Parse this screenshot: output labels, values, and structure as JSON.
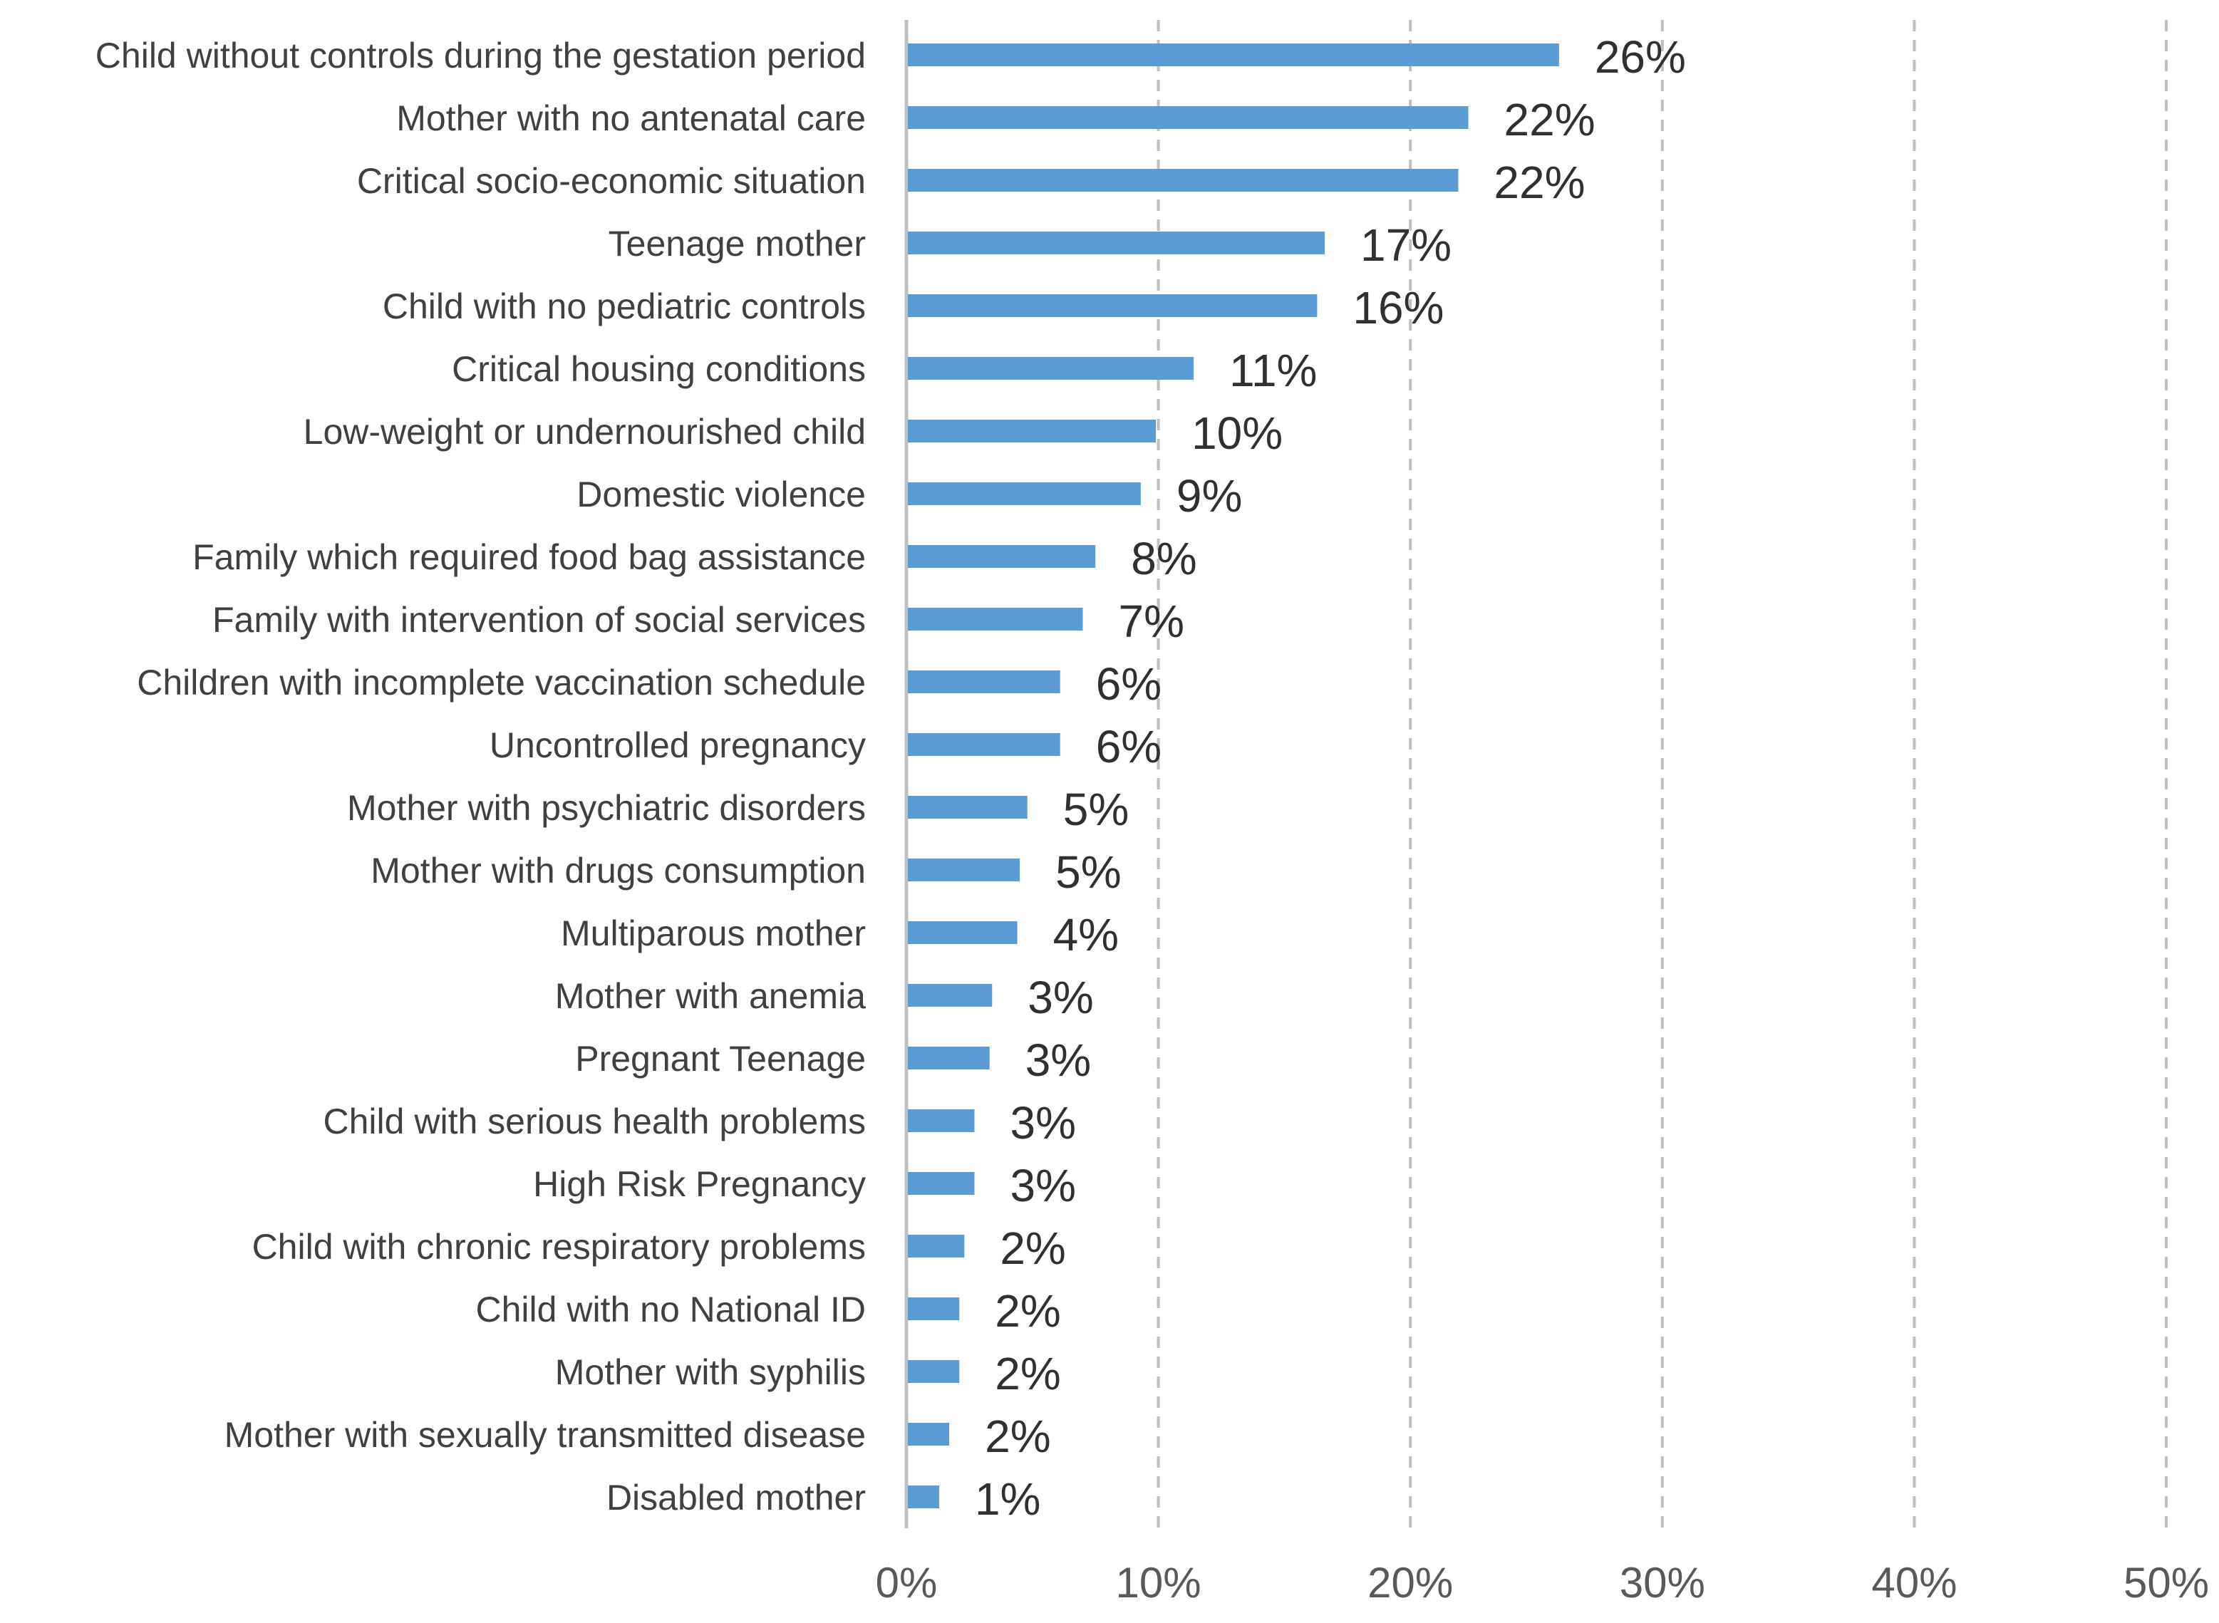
{
  "colors": {
    "bar": "#5b9bd5",
    "grid": "#bfbfbf",
    "axis": "#bfbfbf",
    "category_text": "#404040",
    "value_text": "#303030",
    "tick_text": "#595959"
  },
  "chart_data": {
    "type": "bar",
    "orientation": "horizontal",
    "title": "",
    "xlabel": "",
    "ylabel": "",
    "xlim": [
      0,
      50
    ],
    "ticks": [
      0,
      10,
      20,
      30,
      40,
      50
    ],
    "tick_labels": [
      "0%",
      "10%",
      "20%",
      "30%",
      "40%",
      "50%"
    ],
    "grid": "vertical dashed",
    "categories": [
      "Child without controls during the gestation period",
      "Mother with no antenatal care",
      "Critical socio-economic situation",
      "Teenage mother",
      "Child with no pediatric controls",
      "Critical housing conditions",
      "Low-weight or undernourished child",
      "Domestic violence",
      "Family which required food bag assistance",
      "Family with intervention of social services",
      "Children with incomplete vaccination schedule",
      "Uncontrolled pregnancy",
      "Mother with psychiatric disorders",
      "Mother with drugs consumption",
      "Multiparous mother",
      "Mother with anemia",
      "Pregnant Teenage",
      "Child with serious health problems",
      "High Risk Pregnancy",
      "Child with chronic respiratory problems",
      "Child with no National ID",
      "Mother with syphilis",
      "Mother with sexually transmitted disease",
      "Disabled mother"
    ],
    "values": [
      25.9,
      22.3,
      21.9,
      16.6,
      16.3,
      11.4,
      9.9,
      9.3,
      7.5,
      7.0,
      6.1,
      6.1,
      4.8,
      4.5,
      4.4,
      3.4,
      3.3,
      2.7,
      2.7,
      2.3,
      2.1,
      2.1,
      1.7,
      1.3
    ],
    "value_labels": [
      "26%",
      "22%",
      "22%",
      "17%",
      "16%",
      "11%",
      "10%",
      "9%",
      "8%",
      "7%",
      "6%",
      "6%",
      "5%",
      "5%",
      "4%",
      "3%",
      "3%",
      "3%",
      "3%",
      "2%",
      "2%",
      "2%",
      "2%",
      "1%"
    ]
  }
}
